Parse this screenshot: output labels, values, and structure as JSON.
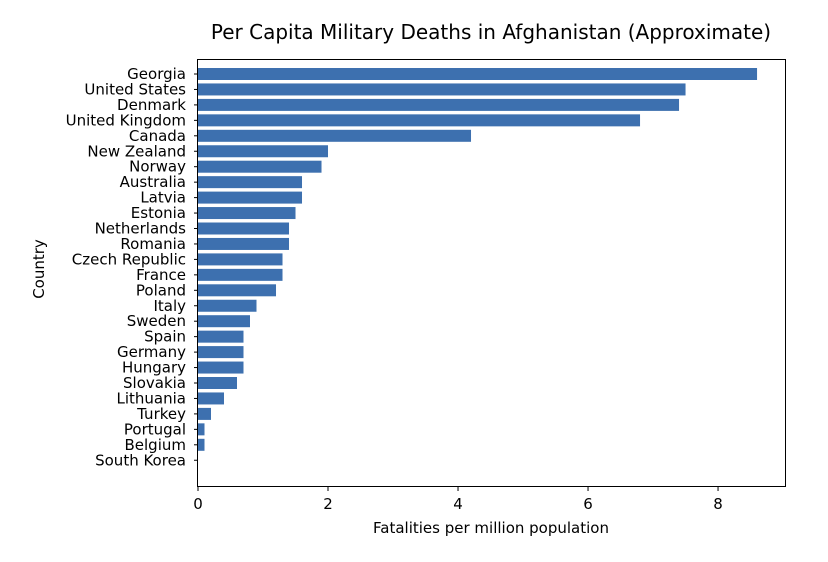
{
  "chart_data": {
    "type": "bar",
    "orientation": "horizontal",
    "title": "Per Capita Military Deaths in Afghanistan (Approximate)",
    "xlabel": "Fatalities per million population",
    "ylabel": "Country",
    "xlim": [
      0,
      9.03
    ],
    "xticks": [
      0,
      2,
      4,
      6,
      8
    ],
    "grid": false,
    "bar_color": "#3d70af",
    "categories": [
      "Georgia",
      "United States",
      "Denmark",
      "United Kingdom",
      "Canada",
      "New Zealand",
      "Norway",
      "Australia",
      "Latvia",
      "Estonia",
      "Netherlands",
      "Romania",
      "Czech Republic",
      "France",
      "Poland",
      "Italy",
      "Sweden",
      "Spain",
      "Germany",
      "Hungary",
      "Slovakia",
      "Lithuania",
      "Turkey",
      "Portugal",
      "Belgium",
      "South Korea"
    ],
    "values": [
      8.6,
      7.5,
      7.4,
      6.8,
      4.2,
      2.0,
      1.9,
      1.6,
      1.6,
      1.5,
      1.4,
      1.4,
      1.3,
      1.3,
      1.2,
      0.9,
      0.8,
      0.7,
      0.7,
      0.7,
      0.6,
      0.4,
      0.2,
      0.1,
      0.1,
      0.0
    ]
  }
}
